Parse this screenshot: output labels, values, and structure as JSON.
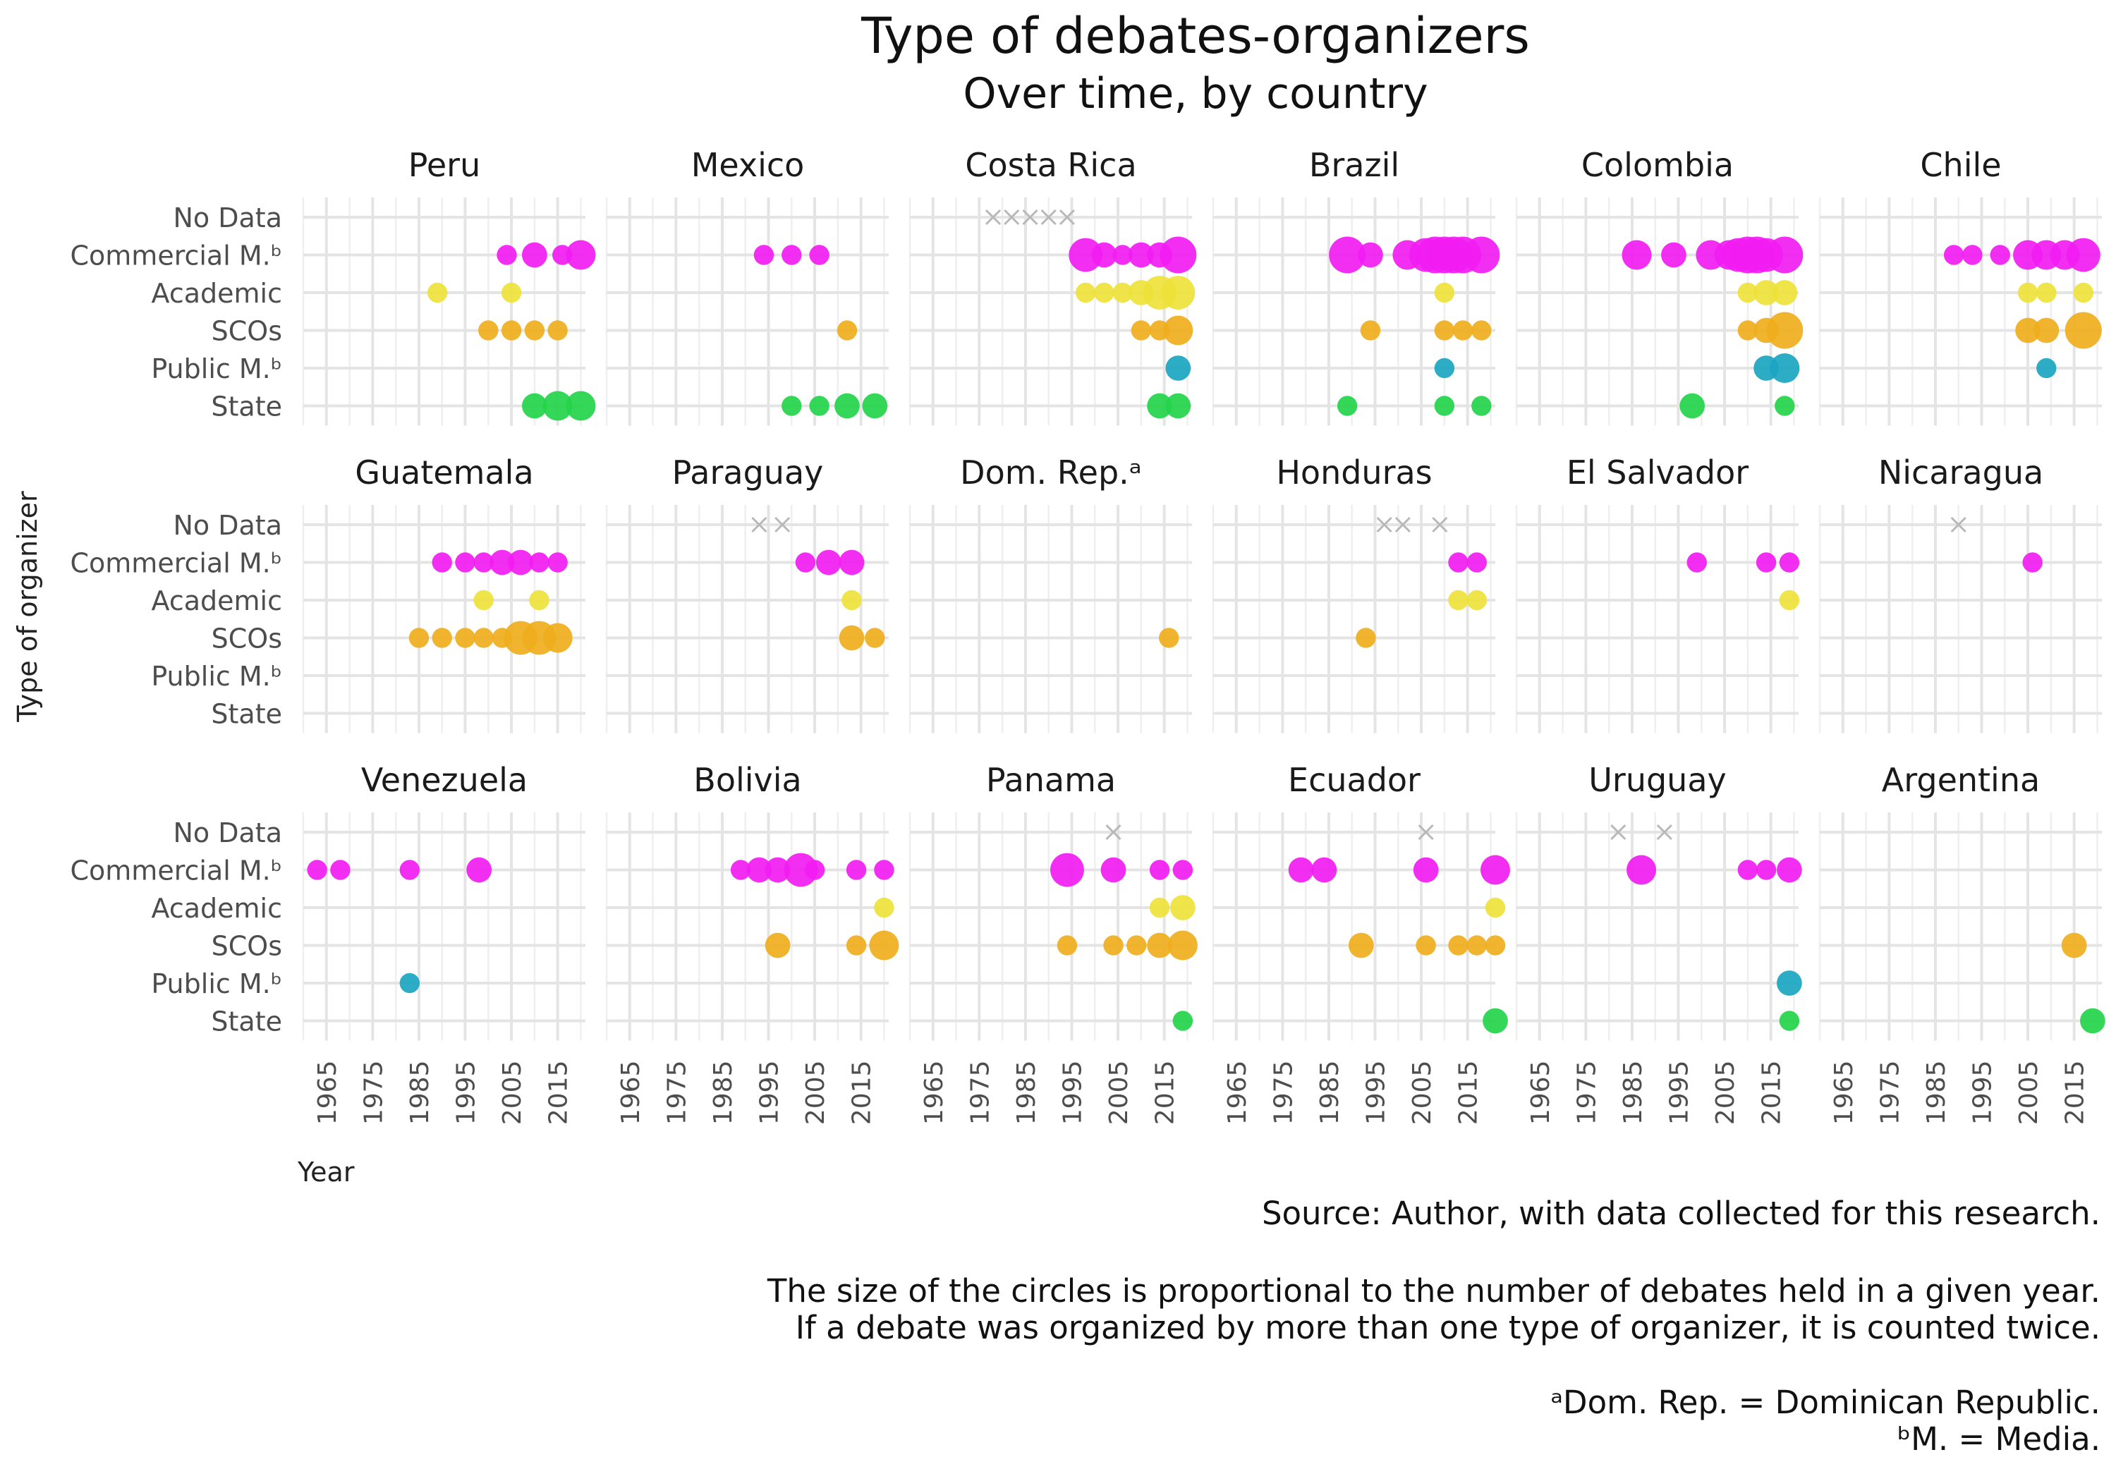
{
  "title": "Type of debates-organizers",
  "subtitle": "Over time, by country",
  "y_axis_label": "Type of organizer",
  "x_axis_label": "Year",
  "captions": {
    "source": "Source: Author, with data collected for this research.",
    "note_line1": "The size of the circles is proportional to the number of debates held in a given year.",
    "note_line2": "If a debate was organized by more than one type of organizer, it is counted twice.",
    "footnote_a": "ᵃDom. Rep. = Dominican Republic.",
    "footnote_b": "ᵇM. = Media."
  },
  "chart_data": {
    "type": "scatter",
    "x_ticks": [
      1965,
      1975,
      1985,
      1995,
      2005,
      2015
    ],
    "xlim": [
      1960,
      2021
    ],
    "y_categories": [
      "No Data",
      "Commercial M.ᵇ",
      "Academic",
      "SCOs",
      "Public M.ᵇ",
      "State"
    ],
    "size_meaning": "number of debates held in a given year",
    "colors": {
      "No Data": "#b8b8b8",
      "Commercial M.ᵇ": "#f21cf2",
      "Academic": "#eee23a",
      "SCOs": "#efae1c",
      "Public M.ᵇ": "#1ba5c1",
      "State": "#24d44a"
    },
    "panels": [
      {
        "name": "Peru",
        "points": [
          {
            "cat": "Commercial M.ᵇ",
            "x": [
              2004,
              2010,
              2016,
              2020
            ],
            "n": [
              1,
              2,
              1,
              3
            ]
          },
          {
            "cat": "Academic",
            "x": [
              1989,
              2005
            ],
            "n": [
              1,
              1
            ]
          },
          {
            "cat": "SCOs",
            "x": [
              2000,
              2005,
              2010,
              2015
            ],
            "n": [
              1,
              1,
              1,
              1
            ]
          },
          {
            "cat": "State",
            "x": [
              2010,
              2015,
              2020
            ],
            "n": [
              2,
              3,
              3
            ]
          }
        ]
      },
      {
        "name": "Mexico",
        "points": [
          {
            "cat": "Commercial M.ᵇ",
            "x": [
              1994,
              2000,
              2006
            ],
            "n": [
              1,
              1,
              1
            ]
          },
          {
            "cat": "SCOs",
            "x": [
              2012
            ],
            "n": [
              1
            ]
          },
          {
            "cat": "State",
            "x": [
              2000,
              2006,
              2012,
              2018
            ],
            "n": [
              1,
              1,
              2,
              2
            ]
          }
        ]
      },
      {
        "name": "Costa Rica",
        "points": [
          {
            "cat": "No Data",
            "x": [
              1978,
              1982,
              1986,
              1990,
              1994
            ],
            "n": [
              1,
              1,
              1,
              1,
              1
            ]
          },
          {
            "cat": "Commercial M.ᵇ",
            "x": [
              1998,
              2002,
              2006,
              2010,
              2014,
              2018
            ],
            "n": [
              4,
              2,
              1,
              2,
              2,
              6
            ]
          },
          {
            "cat": "Academic",
            "x": [
              1998,
              2002,
              2006,
              2010,
              2014,
              2018
            ],
            "n": [
              1,
              1,
              1,
              2,
              4,
              4
            ]
          },
          {
            "cat": "SCOs",
            "x": [
              2010,
              2014,
              2018
            ],
            "n": [
              1,
              1,
              3
            ]
          },
          {
            "cat": "Public M.ᵇ",
            "x": [
              2018
            ],
            "n": [
              2
            ]
          },
          {
            "cat": "State",
            "x": [
              2014,
              2018
            ],
            "n": [
              2,
              2
            ]
          }
        ]
      },
      {
        "name": "Brazil",
        "points": [
          {
            "cat": "Commercial M.ᵇ",
            "x": [
              1989,
              1994,
              2002,
              2006,
              2008,
              2010,
              2012,
              2014,
              2018
            ],
            "n": [
              6,
              2,
              3,
              4,
              5,
              6,
              6,
              5,
              5
            ]
          },
          {
            "cat": "Academic",
            "x": [
              2010
            ],
            "n": [
              1
            ]
          },
          {
            "cat": "SCOs",
            "x": [
              1994,
              2010,
              2014,
              2018
            ],
            "n": [
              1,
              1,
              1,
              1
            ]
          },
          {
            "cat": "Public M.ᵇ",
            "x": [
              2010
            ],
            "n": [
              1
            ]
          },
          {
            "cat": "State",
            "x": [
              1989,
              2010,
              2018
            ],
            "n": [
              1,
              1,
              1
            ]
          }
        ]
      },
      {
        "name": "Colombia",
        "points": [
          {
            "cat": "Commercial M.ᵇ",
            "x": [
              1986,
              1994,
              2002,
              2006,
              2008,
              2010,
              2012,
              2014,
              2018
            ],
            "n": [
              3,
              2,
              3,
              3,
              4,
              6,
              5,
              4,
              5
            ]
          },
          {
            "cat": "Academic",
            "x": [
              2010,
              2014,
              2018
            ],
            "n": [
              1,
              2,
              2
            ]
          },
          {
            "cat": "SCOs",
            "x": [
              2010,
              2014,
              2018
            ],
            "n": [
              1,
              2,
              7
            ]
          },
          {
            "cat": "Public M.ᵇ",
            "x": [
              2014,
              2018
            ],
            "n": [
              2,
              3
            ]
          },
          {
            "cat": "State",
            "x": [
              1998,
              2018
            ],
            "n": [
              2,
              1
            ]
          }
        ]
      },
      {
        "name": "Chile",
        "points": [
          {
            "cat": "Commercial M.ᵇ",
            "x": [
              1989,
              1993,
              1999,
              2005,
              2009,
              2013,
              2017
            ],
            "n": [
              1,
              1,
              1,
              3,
              3,
              3,
              4
            ]
          },
          {
            "cat": "Academic",
            "x": [
              2005,
              2009,
              2017
            ],
            "n": [
              1,
              1,
              1
            ]
          },
          {
            "cat": "SCOs",
            "x": [
              2005,
              2009,
              2017
            ],
            "n": [
              2,
              2,
              5
            ]
          },
          {
            "cat": "Public M.ᵇ",
            "x": [
              2009
            ],
            "n": [
              1
            ]
          }
        ]
      },
      {
        "name": "Guatemala",
        "points": [
          {
            "cat": "Commercial M.ᵇ",
            "x": [
              1990,
              1995,
              1999,
              2003,
              2007,
              2011,
              2015
            ],
            "n": [
              1,
              1,
              1,
              2,
              2,
              1,
              1
            ]
          },
          {
            "cat": "Academic",
            "x": [
              1999,
              2011
            ],
            "n": [
              1,
              1
            ]
          },
          {
            "cat": "SCOs",
            "x": [
              1985,
              1990,
              1995,
              1999,
              2003,
              2007,
              2011,
              2015
            ],
            "n": [
              1,
              1,
              1,
              1,
              1,
              4,
              4,
              3
            ]
          }
        ]
      },
      {
        "name": "Paraguay",
        "points": [
          {
            "cat": "No Data",
            "x": [
              1993,
              1998
            ],
            "n": [
              1,
              1
            ]
          },
          {
            "cat": "Commercial M.ᵇ",
            "x": [
              2003,
              2008,
              2013
            ],
            "n": [
              1,
              2,
              2
            ]
          },
          {
            "cat": "Academic",
            "x": [
              2013
            ],
            "n": [
              1
            ]
          },
          {
            "cat": "SCOs",
            "x": [
              2013,
              2018
            ],
            "n": [
              2,
              1
            ]
          }
        ]
      },
      {
        "name": "Dom. Rep.ᵃ",
        "points": [
          {
            "cat": "SCOs",
            "x": [
              2016
            ],
            "n": [
              1
            ]
          }
        ]
      },
      {
        "name": "Honduras",
        "points": [
          {
            "cat": "No Data",
            "x": [
              1997,
              2001,
              2009
            ],
            "n": [
              1,
              1,
              1
            ]
          },
          {
            "cat": "Commercial M.ᵇ",
            "x": [
              2013,
              2017
            ],
            "n": [
              1,
              1
            ]
          },
          {
            "cat": "Academic",
            "x": [
              2013,
              2017
            ],
            "n": [
              1,
              1
            ]
          },
          {
            "cat": "SCOs",
            "x": [
              1993
            ],
            "n": [
              1
            ]
          }
        ]
      },
      {
        "name": "El Salvador",
        "points": [
          {
            "cat": "Commercial M.ᵇ",
            "x": [
              1999,
              2014,
              2019
            ],
            "n": [
              1,
              1,
              1
            ]
          },
          {
            "cat": "Academic",
            "x": [
              2019
            ],
            "n": [
              1
            ]
          }
        ]
      },
      {
        "name": "Nicaragua",
        "points": [
          {
            "cat": "No Data",
            "x": [
              1990
            ],
            "n": [
              1
            ]
          },
          {
            "cat": "Commercial M.ᵇ",
            "x": [
              2006
            ],
            "n": [
              1
            ]
          }
        ]
      },
      {
        "name": "Venezuela",
        "points": [
          {
            "cat": "Commercial M.ᵇ",
            "x": [
              1963,
              1968,
              1983,
              1998
            ],
            "n": [
              1,
              1,
              1,
              2
            ]
          },
          {
            "cat": "Public M.ᵇ",
            "x": [
              1983
            ],
            "n": [
              1
            ]
          }
        ]
      },
      {
        "name": "Bolivia",
        "points": [
          {
            "cat": "Commercial M.ᵇ",
            "x": [
              1989,
              1993,
              1997,
              2002,
              2005,
              2014,
              2020
            ],
            "n": [
              1,
              2,
              2,
              4,
              1,
              1,
              1
            ]
          },
          {
            "cat": "Academic",
            "x": [
              2020
            ],
            "n": [
              1
            ]
          },
          {
            "cat": "SCOs",
            "x": [
              1997,
              2014,
              2020
            ],
            "n": [
              2,
              1,
              3
            ]
          }
        ]
      },
      {
        "name": "Panama",
        "points": [
          {
            "cat": "No Data",
            "x": [
              2004
            ],
            "n": [
              1
            ]
          },
          {
            "cat": "Commercial M.ᵇ",
            "x": [
              1994,
              2004,
              2014,
              2019
            ],
            "n": [
              4,
              2,
              1,
              1
            ]
          },
          {
            "cat": "Academic",
            "x": [
              2014,
              2019
            ],
            "n": [
              1,
              2
            ]
          },
          {
            "cat": "SCOs",
            "x": [
              1994,
              2004,
              2009,
              2014,
              2019
            ],
            "n": [
              1,
              1,
              1,
              2,
              3
            ]
          },
          {
            "cat": "State",
            "x": [
              2019
            ],
            "n": [
              1
            ]
          }
        ]
      },
      {
        "name": "Ecuador",
        "points": [
          {
            "cat": "No Data",
            "x": [
              2006
            ],
            "n": [
              1
            ]
          },
          {
            "cat": "Commercial M.ᵇ",
            "x": [
              1979,
              1984,
              2006,
              2021
            ],
            "n": [
              2,
              2,
              2,
              3
            ]
          },
          {
            "cat": "Academic",
            "x": [
              2021
            ],
            "n": [
              1
            ]
          },
          {
            "cat": "SCOs",
            "x": [
              1992,
              2006,
              2013,
              2017,
              2021
            ],
            "n": [
              2,
              1,
              1,
              1,
              1
            ]
          },
          {
            "cat": "State",
            "x": [
              2021
            ],
            "n": [
              2
            ]
          }
        ]
      },
      {
        "name": "Uruguay",
        "points": [
          {
            "cat": "No Data",
            "x": [
              1982,
              1992
            ],
            "n": [
              1,
              1
            ]
          },
          {
            "cat": "Commercial M.ᵇ",
            "x": [
              1987,
              2010,
              2014,
              2019
            ],
            "n": [
              3,
              1,
              1,
              2
            ]
          },
          {
            "cat": "Public M.ᵇ",
            "x": [
              2019
            ],
            "n": [
              2
            ]
          },
          {
            "cat": "State",
            "x": [
              2019
            ],
            "n": [
              1
            ]
          }
        ]
      },
      {
        "name": "Argentina",
        "points": [
          {
            "cat": "SCOs",
            "x": [
              2015
            ],
            "n": [
              2
            ]
          },
          {
            "cat": "State",
            "x": [
              2019
            ],
            "n": [
              2
            ]
          }
        ]
      }
    ]
  }
}
